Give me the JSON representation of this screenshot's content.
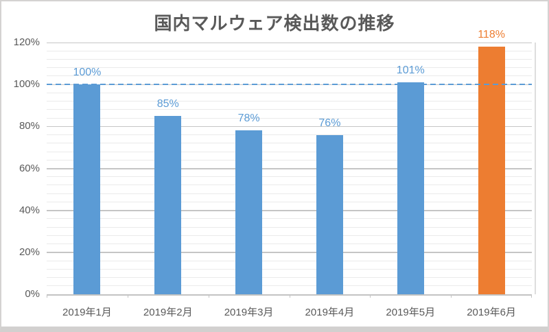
{
  "chart_data": {
    "type": "bar",
    "title": "国内マルウェア検出数の推移",
    "categories": [
      "2019年1月",
      "2019年2月",
      "2019年3月",
      "2019年4月",
      "2019年5月",
      "2019年6月"
    ],
    "values": [
      100,
      85,
      78,
      76,
      101,
      118
    ],
    "data_labels": [
      "100%",
      "85%",
      "78%",
      "76%",
      "101%",
      "118%"
    ],
    "highlight_index": 5,
    "ylim": [
      0,
      120
    ],
    "xlabel": "",
    "ylabel": "",
    "y_axis": {
      "tick_values": [
        0,
        20,
        40,
        60,
        80,
        100,
        120
      ],
      "tick_labels": [
        "0%",
        "20%",
        "40%",
        "60%",
        "80%",
        "100%",
        "120%"
      ]
    },
    "grid": {
      "major_step": 20,
      "minor_step": 4,
      "visible": true
    },
    "reference_line": {
      "value": 100,
      "style": "dashed"
    },
    "colors": {
      "bar": "#5B9BD5",
      "highlight": "#ED7D31",
      "title": "#595959",
      "axis_text": "#595959",
      "grid_major": "#C5C5C5",
      "grid_minor": "#EAEAEA",
      "axis_line": "#C3C3C3",
      "reference": "#5B9BD5",
      "plot_right_border": "#DDDDDD"
    }
  }
}
